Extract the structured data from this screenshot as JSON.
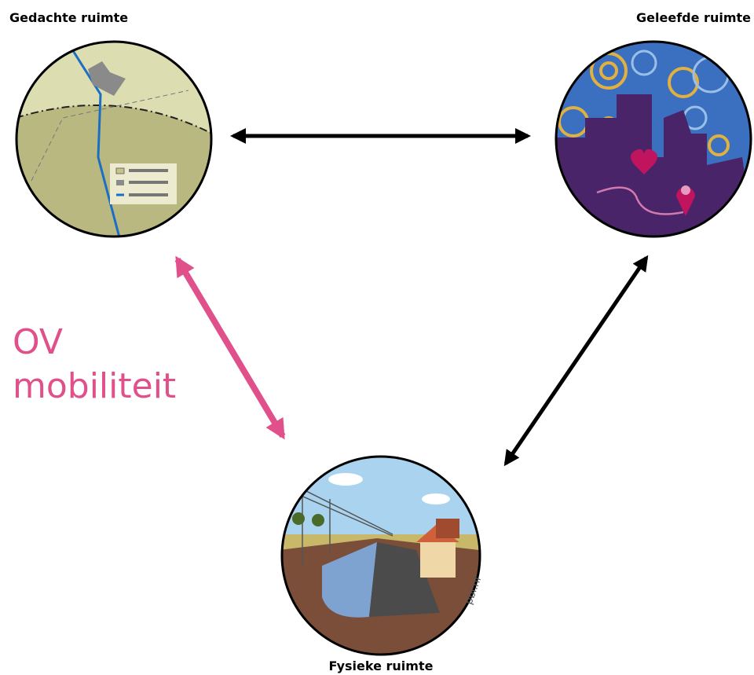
{
  "nodes": [
    {
      "label": "Gedachte ruimte"
    },
    {
      "label": "Geleefde ruimte"
    },
    {
      "label": "Fysieke ruimte"
    }
  ],
  "edge_label": {
    "lines": [
      "OV",
      "mobiliteit"
    ]
  },
  "credit": "pbl.nl"
}
